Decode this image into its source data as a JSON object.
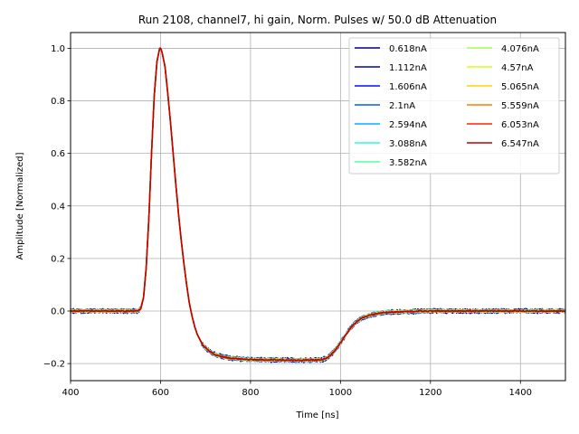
{
  "chart_data": {
    "type": "line",
    "title": "Run 2108, channel7, hi gain, Norm. Pulses w/ 50.0 dB Attenuation",
    "xlabel": "Time [ns]",
    "ylabel": "Amplitude [Normalized]",
    "xlim": [
      400,
      1500
    ],
    "ylim": [
      -0.265,
      1.06
    ],
    "xticks": [
      400,
      600,
      800,
      1000,
      1200,
      1400
    ],
    "yticks": [
      -0.2,
      0.0,
      0.2,
      0.4,
      0.6,
      0.8,
      1.0
    ],
    "xtick_labels": [
      "400",
      "600",
      "800",
      "1000",
      "1200",
      "1400"
    ],
    "ytick_labels": [
      "−0.2",
      "0.0",
      "0.2",
      "0.4",
      "0.6",
      "0.8",
      "1.0"
    ],
    "grid": true,
    "legend_position": "top-right",
    "legend_columns": 2,
    "series": [
      {
        "name": "0.618nA",
        "color": "#000080"
      },
      {
        "name": "1.112nA",
        "color": "#0000b6"
      },
      {
        "name": "1.606nA",
        "color": "#0010ff"
      },
      {
        "name": "2.1nA",
        "color": "#005cff"
      },
      {
        "name": "2.594nA",
        "color": "#00b4ff"
      },
      {
        "name": "3.088nA",
        "color": "#29ffce"
      },
      {
        "name": "3.582nA",
        "color": "#55ffa3"
      },
      {
        "name": "4.076nA",
        "color": "#a6ff51"
      },
      {
        "name": "4.57nA",
        "color": "#d3ff24"
      },
      {
        "name": "5.065nA",
        "color": "#ffd400"
      },
      {
        "name": "5.559nA",
        "color": "#ff7c00"
      },
      {
        "name": "6.053nA",
        "color": "#ff2500"
      },
      {
        "name": "6.547nA",
        "color": "#c00000"
      }
    ],
    "waveform": {
      "x": [
        400,
        550,
        556,
        562,
        568,
        574,
        580,
        586,
        592,
        598,
        601,
        604,
        610,
        616,
        622,
        628,
        634,
        640,
        646,
        652,
        658,
        664,
        670,
        676,
        682,
        688,
        694,
        700,
        710,
        720,
        730,
        740,
        750,
        760,
        780,
        800,
        850,
        900,
        940,
        960,
        970,
        980,
        990,
        1000,
        1010,
        1020,
        1030,
        1040,
        1050,
        1060,
        1080,
        1100,
        1150,
        1200,
        1300,
        1400,
        1500
      ],
      "y": [
        0.0,
        0.0,
        0.01,
        0.05,
        0.16,
        0.35,
        0.6,
        0.82,
        0.95,
        1.0,
        1.0,
        0.98,
        0.93,
        0.83,
        0.72,
        0.6,
        0.48,
        0.37,
        0.27,
        0.18,
        0.1,
        0.03,
        -0.02,
        -0.06,
        -0.09,
        -0.11,
        -0.13,
        -0.14,
        -0.155,
        -0.165,
        -0.17,
        -0.175,
        -0.178,
        -0.18,
        -0.183,
        -0.185,
        -0.186,
        -0.187,
        -0.187,
        -0.185,
        -0.178,
        -0.165,
        -0.145,
        -0.12,
        -0.095,
        -0.07,
        -0.05,
        -0.035,
        -0.025,
        -0.018,
        -0.01,
        -0.005,
        -0.002,
        0.0,
        0.0,
        0.0,
        0.0
      ]
    }
  }
}
